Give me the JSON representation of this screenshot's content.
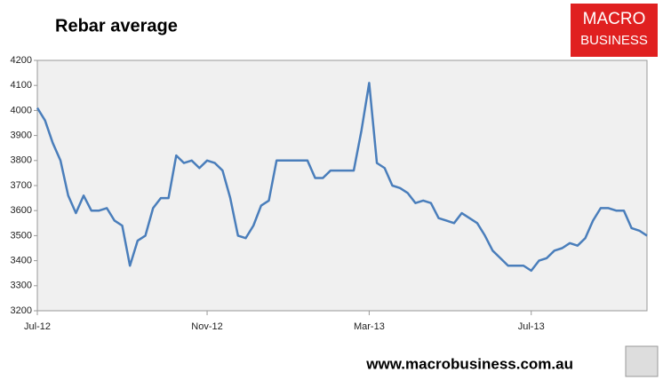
{
  "chart_data": {
    "type": "line",
    "title": "Rebar average",
    "series": [
      {
        "name": "Rebar average",
        "color": "#4a7ebb",
        "values": [
          4010,
          3960,
          3870,
          3800,
          3660,
          3590,
          3660,
          3600,
          3600,
          3610,
          3560,
          3540,
          3380,
          3480,
          3500,
          3610,
          3650,
          3650,
          3820,
          3790,
          3800,
          3770,
          3800,
          3790,
          3760,
          3650,
          3500,
          3490,
          3540,
          3620,
          3640,
          3800,
          3800,
          3800,
          3800,
          3800,
          3730,
          3730,
          3760,
          3760,
          3760,
          3760,
          3920,
          4110,
          3790,
          3770,
          3700,
          3690,
          3670,
          3630,
          3640,
          3630,
          3570,
          3560,
          3550,
          3590,
          3570,
          3550,
          3500,
          3440,
          3410,
          3380,
          3380,
          3380,
          3360,
          3400,
          3410,
          3440,
          3450,
          3470,
          3460,
          3490,
          3560,
          3610,
          3610,
          3600,
          3600,
          3530,
          3520,
          3500
        ]
      }
    ],
    "xlim": [
      0,
      79
    ],
    "xticks": [
      {
        "value": 0,
        "label": "Jul-12"
      },
      {
        "value": 22,
        "label": "Nov-12"
      },
      {
        "value": 43,
        "label": "Mar-13"
      },
      {
        "value": 64,
        "label": "Jul-13"
      }
    ],
    "ylim": [
      3200,
      4200
    ],
    "yticks": [
      3200,
      3300,
      3400,
      3500,
      3600,
      3700,
      3800,
      3900,
      4000,
      4100,
      4200
    ],
    "grid": false
  },
  "logo": {
    "line1": "MACRO",
    "line2": "BUSINESS"
  },
  "footer": "www.macrobusiness.com.au"
}
